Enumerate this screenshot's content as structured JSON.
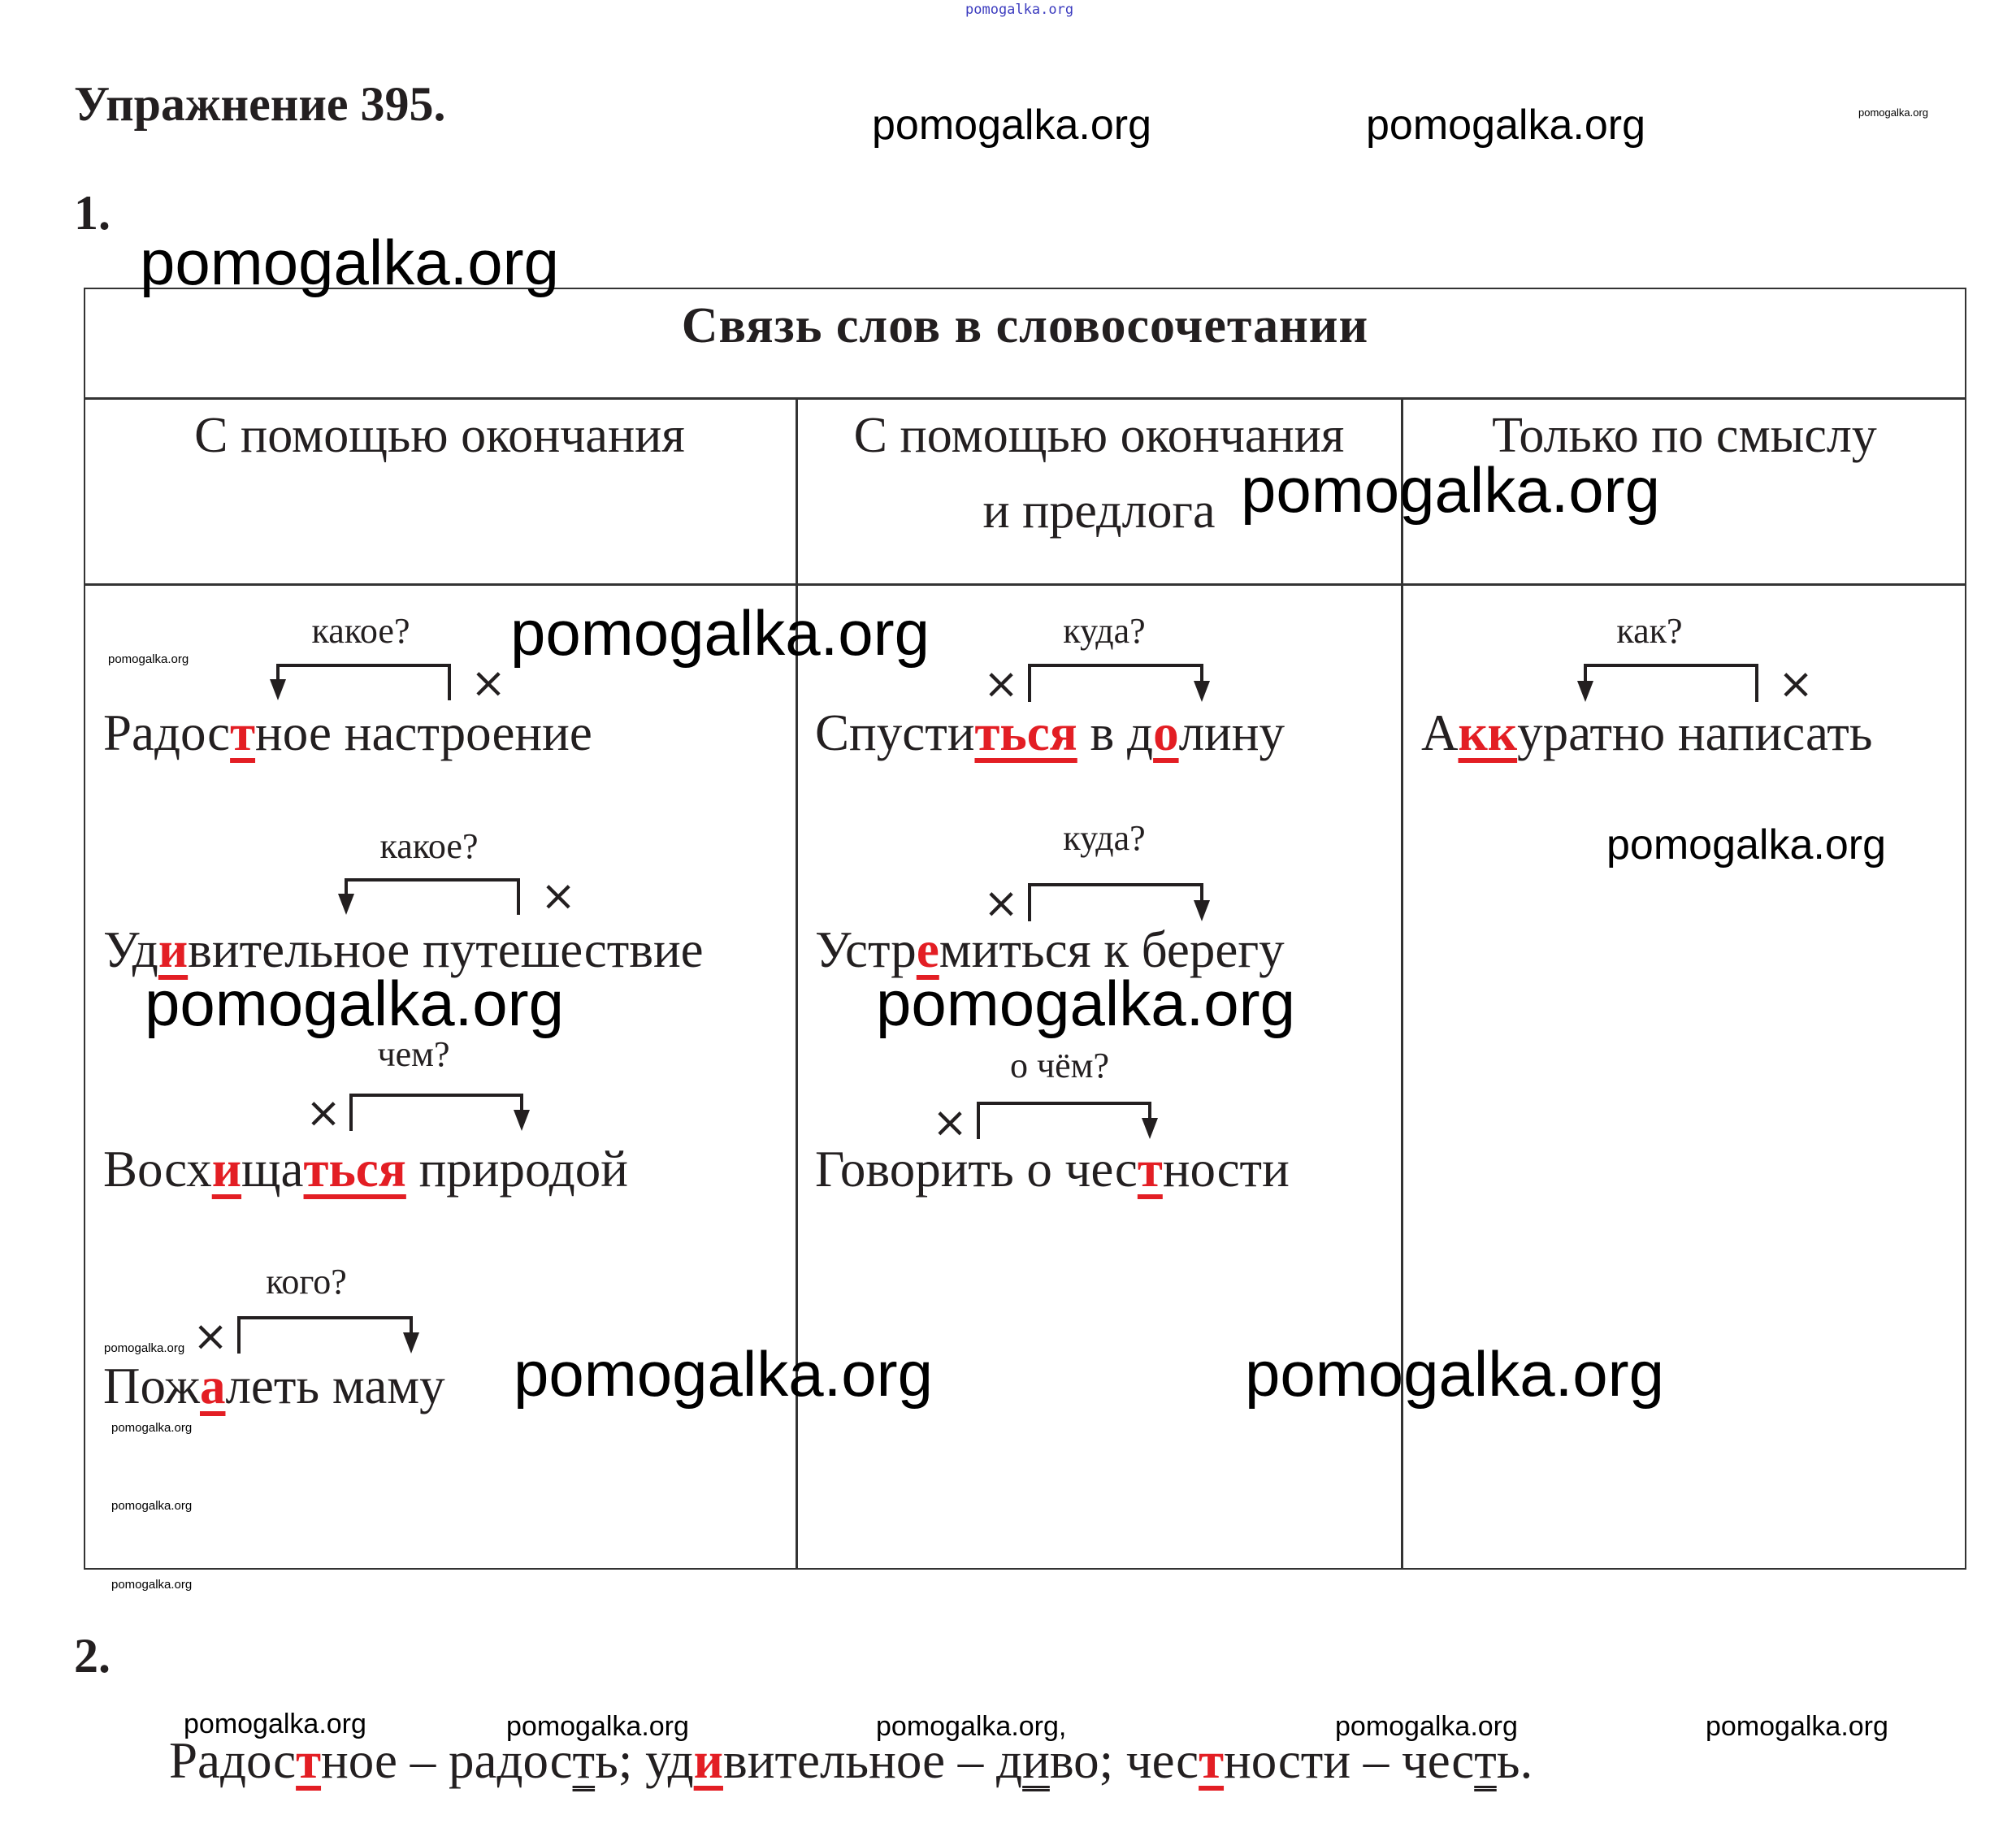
{
  "top_watermark": "pomogalka.org",
  "title": "Упражнение 395.",
  "watermarks": {
    "top1": "pomogalka.org",
    "top2": "pomogalka.org",
    "top_small": "pomogalka.org",
    "under1": "pomogalka.org",
    "header_col3": "pomogalka.org",
    "row1_mid": "pomogalka.org",
    "small1": "pomogalka.org",
    "col1_mid": "pomogalka.org",
    "col2_mid": "pomogalka.org",
    "col3_mid": "pomogalka.org",
    "small2": "pomogalka.org",
    "small3": "pomogalka.org",
    "small4": "pomogalka.org",
    "small5": "pomogalka.org",
    "bottom_mid1": "pomogalka.org",
    "bottom_mid2": "pomogalka.org",
    "line1": "pomogalka.org",
    "line2": "pomogalka.org",
    "line3": "pomogalka.org,",
    "line4": "pomogalka.org",
    "line5": "pomogalka.org"
  },
  "section1": "1.",
  "section2": "2.",
  "table": {
    "title": "Связь слов в словосочетании",
    "columns": [
      {
        "line1": "С помощью окончания",
        "line2": ""
      },
      {
        "line1": "С помощью окончания",
        "line2": "и предлога"
      },
      {
        "line1": "Только по смыслу",
        "line2": ""
      }
    ],
    "entries": [
      {
        "question": "какое?",
        "segments": [
          {
            "t": "Радос"
          },
          {
            "t": "т",
            "mark": "red"
          },
          {
            "t": "ное настроение"
          }
        ]
      },
      {
        "question": "какое?",
        "segments": [
          {
            "t": "Уд"
          },
          {
            "t": "и",
            "mark": "red"
          },
          {
            "t": "вительное путешествие"
          }
        ]
      },
      {
        "question": "чем?",
        "segments": [
          {
            "t": "Восх"
          },
          {
            "t": "и",
            "mark": "red"
          },
          {
            "t": "ща"
          },
          {
            "t": "ться",
            "mark": "red"
          },
          {
            "t": " природой"
          }
        ]
      },
      {
        "question": "кого?",
        "segments": [
          {
            "t": "Пож"
          },
          {
            "t": "а",
            "mark": "red"
          },
          {
            "t": "леть маму"
          }
        ]
      },
      {
        "question": "куда?",
        "segments": [
          {
            "t": "Спусти"
          },
          {
            "t": "ться",
            "mark": "red"
          },
          {
            "t": " в д"
          },
          {
            "t": "о",
            "mark": "red"
          },
          {
            "t": "лину"
          }
        ]
      },
      {
        "question": "куда?",
        "segments": [
          {
            "t": "Устр"
          },
          {
            "t": "е",
            "mark": "red"
          },
          {
            "t": "миться к берегу"
          }
        ]
      },
      {
        "question": "о чём?",
        "segments": [
          {
            "t": "Говорить о чес"
          },
          {
            "t": "т",
            "mark": "red"
          },
          {
            "t": "ности"
          }
        ]
      },
      {
        "question": "как?",
        "segments": [
          {
            "t": "А"
          },
          {
            "t": "кк",
            "mark": "red"
          },
          {
            "t": "уратно написать"
          }
        ]
      }
    ],
    "dependent_mark": "×"
  },
  "answer2": {
    "segments": [
      {
        "t": "Радос"
      },
      {
        "t": "т",
        "mark": "red"
      },
      {
        "t": "ное – радос"
      },
      {
        "t": "т",
        "mark": "double"
      },
      {
        "t": "ь; уд"
      },
      {
        "t": "и",
        "mark": "red"
      },
      {
        "t": "вительное – д"
      },
      {
        "t": "и",
        "mark": "double"
      },
      {
        "t": "во; чес"
      },
      {
        "t": "т",
        "mark": "red"
      },
      {
        "t": "ности – чес"
      },
      {
        "t": "т",
        "mark": "double"
      },
      {
        "t": "ь."
      }
    ]
  },
  "colors": {
    "highlight": "#e31e24",
    "text": "#231f20",
    "border": "#333333",
    "top_watermark": "#3b3bbf"
  }
}
